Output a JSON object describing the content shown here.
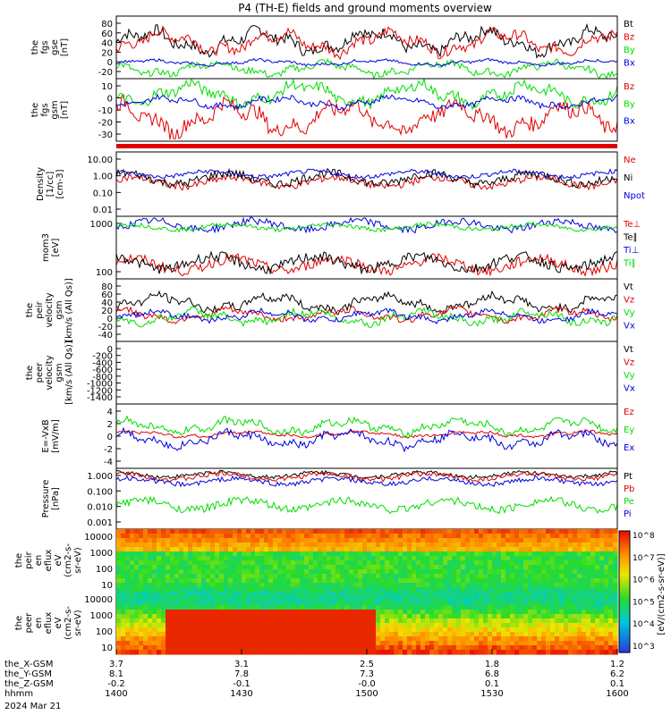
{
  "title": "P4 (TH-E) fields and ground moments overview",
  "date_label": "2024 Mar 21",
  "colors": {
    "black": "#000000",
    "red": "#e00000",
    "green": "#00dd00",
    "blue": "#0000dd"
  },
  "colorbar_label": "[eV/(cm2-s-sr-eV)]",
  "colorbar_ticks": [
    "10^3",
    "10^4",
    "10^5",
    "10^6",
    "10^7",
    "10^8"
  ],
  "chart_data": [
    {
      "type": "line",
      "panel": "fgs_gse",
      "ylabel": [
        "the",
        "fgs",
        "gse",
        "[nT]"
      ],
      "yticks": [
        "80",
        "60",
        "40",
        "20",
        "0",
        "-20"
      ],
      "ylim": [
        -30,
        95
      ],
      "legend": [
        "Bt",
        "Bz",
        "By",
        "Bx"
      ],
      "series": [
        {
          "name": "Bt",
          "color": "black",
          "level": 45,
          "amp": 25
        },
        {
          "name": "Bz",
          "color": "red",
          "level": 43,
          "amp": 24
        },
        {
          "name": "By",
          "color": "green",
          "level": -10,
          "amp": 15
        },
        {
          "name": "Bx",
          "color": "blue",
          "level": 2,
          "amp": 6
        }
      ]
    },
    {
      "type": "line",
      "panel": "fgs_gsm",
      "ylabel": [
        "the",
        "fgs",
        "gsm",
        "[nT]"
      ],
      "yticks": [
        "10",
        "0",
        "-10",
        "-20",
        "-30"
      ],
      "ylim": [
        -38,
        15
      ],
      "legend": [
        "Bz",
        "By",
        "Bx"
      ],
      "series": [
        {
          "name": "Bz",
          "color": "red",
          "level": -18,
          "amp": 14
        },
        {
          "name": "By",
          "color": "green",
          "level": 2,
          "amp": 10
        },
        {
          "name": "Bx",
          "color": "blue",
          "level": -5,
          "amp": 5
        }
      ]
    },
    {
      "type": "line",
      "panel": "density",
      "log": true,
      "ylabel": [
        "Density",
        "[1/cc]",
        "[cm-3]"
      ],
      "yticks": [
        "10.00",
        "1.00",
        "0.10",
        "0.01"
      ],
      "ylim": [
        0.003,
        60
      ],
      "legend": [
        "Ne",
        "Ni",
        "Npot"
      ],
      "series": [
        {
          "name": "Ne",
          "color": "red",
          "level": 0.6,
          "amp": 0.5
        },
        {
          "name": "Ni",
          "color": "black",
          "level": 1.0,
          "amp": 0.6
        },
        {
          "name": "Npot",
          "color": "blue",
          "level": 2.0,
          "amp": 0.3
        }
      ]
    },
    {
      "type": "line",
      "panel": "temperature",
      "log": true,
      "ylabel": [
        "mom3",
        "[eV]"
      ],
      "yticks": [
        "1000",
        "100"
      ],
      "ylim": [
        40,
        5000
      ],
      "legend": [
        "Te⊥",
        "Te∥",
        "Ti⊥",
        "Ti∥"
      ],
      "series": [
        {
          "name": "Te⊥",
          "color": "red",
          "level": 120,
          "amp": 0.35
        },
        {
          "name": "Te∥",
          "color": "black",
          "level": 140,
          "amp": 0.35
        },
        {
          "name": "Ti⊥",
          "color": "blue",
          "level": 2500,
          "amp": 0.25
        },
        {
          "name": "Ti∥",
          "color": "green",
          "level": 2200,
          "amp": 0.15
        }
      ]
    },
    {
      "type": "line",
      "panel": "peir_velocity",
      "ylabel": [
        "the",
        "peir",
        "velocity",
        "gsm",
        "[km/s (All Qs)]"
      ],
      "yticks": [
        "80",
        "60",
        "40",
        "20",
        "0",
        "-20",
        "-40"
      ],
      "ylim": [
        -45,
        85
      ],
      "legend": [
        "Vt",
        "Vz",
        "Vy",
        "Vx"
      ],
      "series": [
        {
          "name": "Vt",
          "color": "black",
          "level": 35,
          "amp": 18
        },
        {
          "name": "Vz",
          "color": "red",
          "level": 10,
          "amp": 14
        },
        {
          "name": "Vy",
          "color": "green",
          "level": 5,
          "amp": 16
        },
        {
          "name": "Vx",
          "color": "blue",
          "level": 8,
          "amp": 12
        }
      ]
    },
    {
      "type": "line",
      "panel": "peer_velocity",
      "ylabel": [
        "the",
        "peer",
        "velocity",
        "gsm",
        "[km/s (All Qs)]"
      ],
      "yticks": [
        "0",
        "-200",
        "-400",
        "-600",
        "-800",
        "-1000",
        "-1200",
        "-1400"
      ],
      "ylim": [
        -1400,
        0
      ],
      "legend": [
        "Vt",
        "Vz",
        "Vy",
        "Vx"
      ],
      "series": []
    },
    {
      "type": "line",
      "panel": "efield",
      "ylabel": [
        "E=-VxB",
        "[mV/m]"
      ],
      "yticks": [
        "4",
        "2",
        "0",
        "-2",
        "-4"
      ],
      "ylim": [
        -5,
        5
      ],
      "legend": [
        "Ez",
        "Ey",
        "Ex"
      ],
      "series": [
        {
          "name": "Ez",
          "color": "red",
          "level": 0.3,
          "amp": 0.5
        },
        {
          "name": "Ey",
          "color": "green",
          "level": 1.5,
          "amp": 1.2
        },
        {
          "name": "Ex",
          "color": "blue",
          "level": -0.5,
          "amp": 1.3
        }
      ]
    },
    {
      "type": "line",
      "panel": "pressure",
      "log": true,
      "ylabel": [
        "Pressure",
        "[nPa]"
      ],
      "yticks": [
        "1.000",
        "0.100",
        "0.010",
        "0.001"
      ],
      "ylim": [
        0.0006,
        4
      ],
      "legend": [
        "Pt",
        "Pb",
        "Pe",
        "Pi"
      ],
      "series": [
        {
          "name": "Pt",
          "color": "black",
          "level": 1.6,
          "amp": 0.25
        },
        {
          "name": "Pb",
          "color": "red",
          "level": 1.2,
          "amp": 0.3
        },
        {
          "name": "Pe",
          "color": "green",
          "level": 0.02,
          "amp": 0.5
        },
        {
          "name": "Pi",
          "color": "blue",
          "level": 0.6,
          "amp": 0.3
        }
      ]
    },
    {
      "type": "heatmap",
      "panel": "peir_spectrogram",
      "ylabel": [
        "the",
        "peir",
        "en",
        "eflux",
        "eV",
        "(cm2-s-",
        "sr-eV)"
      ],
      "yticks": [
        "10000",
        "1000",
        "100",
        "10"
      ],
      "ylim": [
        5,
        20000
      ]
    },
    {
      "type": "heatmap",
      "panel": "peer_spectrogram",
      "ylabel": [
        "the",
        "peer",
        "en",
        "eflux",
        "eV",
        "(cm2-s-",
        "sr-eV)"
      ],
      "yticks": [
        "10000",
        "1000",
        "100",
        "10"
      ],
      "ylim": [
        5,
        20000
      ]
    }
  ],
  "xaxis": {
    "rows": [
      {
        "label": "the_X-GSM",
        "values": [
          "3.7",
          "3.1",
          "2.5",
          "1.8",
          "1.2"
        ]
      },
      {
        "label": "the_Y-GSM",
        "values": [
          "8.1",
          "7.8",
          "7.3",
          "6.8",
          "6.2"
        ]
      },
      {
        "label": "the_Z-GSM",
        "values": [
          "-0.2",
          "-0.1",
          "-0.0",
          "0.1",
          "0.1"
        ]
      },
      {
        "label": "hhmm",
        "values": [
          "1400",
          "1430",
          "1500",
          "1530",
          "1600"
        ]
      }
    ]
  }
}
